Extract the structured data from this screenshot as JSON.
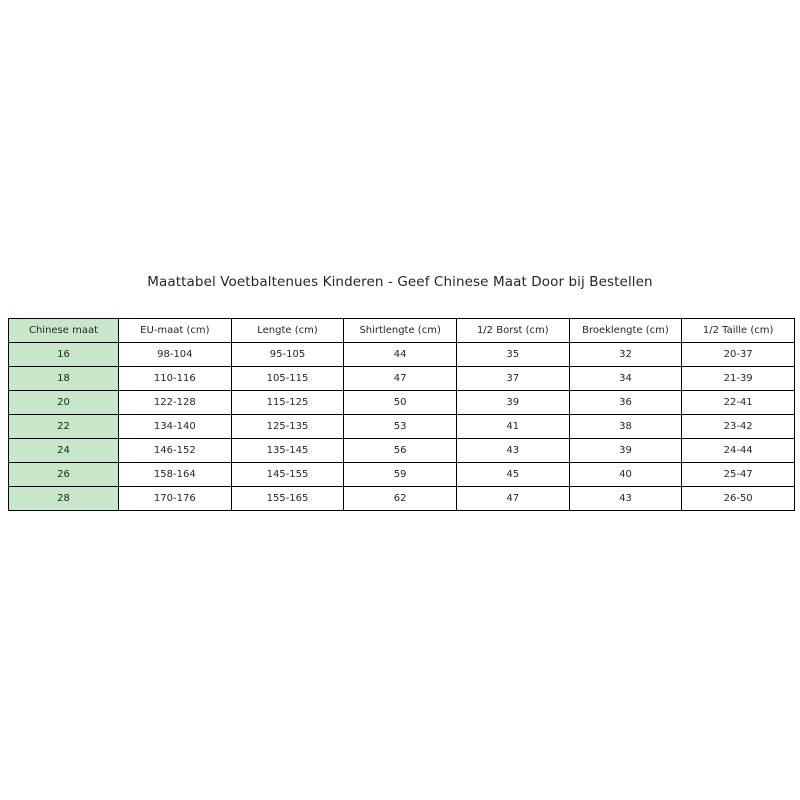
{
  "figure": {
    "title": "Maattabel Voetbaltenues Kinderen - Geef Chinese Maat Door bij Bestellen",
    "background_color": "#ffffff"
  },
  "chart_data": {
    "type": "table",
    "title": "Maattabel Voetbaltenues Kinderen - Geef Chinese Maat Door bij Bestellen",
    "columns": [
      "Chinese maat",
      "EU-maat (cm)",
      "Lengte (cm)",
      "Shirtlengte (cm)",
      "1/2 Borst (cm)",
      "Broeklengte (cm)",
      "1/2 Taille (cm)"
    ],
    "rows": [
      [
        "16",
        "98-104",
        "95-105",
        "44",
        "35",
        "32",
        "20-37"
      ],
      [
        "18",
        "110-116",
        "105-115",
        "47",
        "37",
        "34",
        "21-39"
      ],
      [
        "20",
        "122-128",
        "115-125",
        "50",
        "39",
        "36",
        "22-41"
      ],
      [
        "22",
        "134-140",
        "125-135",
        "53",
        "41",
        "38",
        "23-42"
      ],
      [
        "24",
        "146-152",
        "135-145",
        "56",
        "43",
        "39",
        "24-44"
      ],
      [
        "26",
        "158-164",
        "145-155",
        "59",
        "45",
        "40",
        "25-47"
      ],
      [
        "28",
        "170-176",
        "155-165",
        "62",
        "47",
        "43",
        "26-50"
      ]
    ],
    "layout": {
      "first_column_bg": "#c8e6c9",
      "cell_bg": "#ffffff",
      "border_color": "#000000",
      "text_color": "#262626",
      "legend": "off",
      "grid": "table-borders"
    }
  }
}
